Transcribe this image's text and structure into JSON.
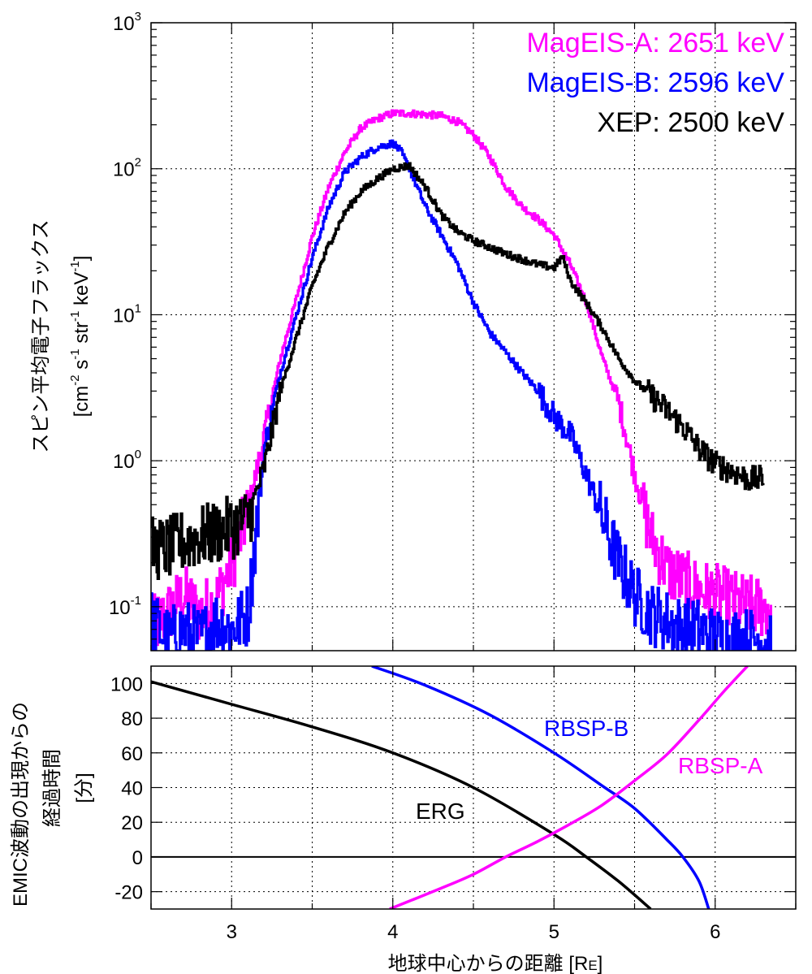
{
  "chart_data": [
    {
      "type": "line",
      "panel": "top",
      "ylabel_line1": "スピン平均電子フラックス",
      "ylabel_line2_parts": [
        "[cm",
        "-2",
        " s",
        "-1",
        " str",
        "-1",
        " keV",
        "-1",
        "]"
      ],
      "yscale": "log",
      "xlim": [
        2.5,
        6.5
      ],
      "ylim": [
        0.05,
        1000
      ],
      "x_ticks": [
        3,
        4,
        5,
        6
      ],
      "y_ticks": [
        {
          "value": 0.1,
          "base": "10",
          "exp": "-1"
        },
        {
          "value": 1,
          "base": "10",
          "exp": "0"
        },
        {
          "value": 10,
          "base": "10",
          "exp": "1"
        },
        {
          "value": 100,
          "base": "10",
          "exp": "2"
        },
        {
          "value": 1000,
          "base": "10",
          "exp": "3"
        }
      ],
      "grid": true,
      "legend_position": "top-right",
      "series": [
        {
          "name": "MagEIS-A: 2651 keV",
          "color": "#ff00ff",
          "x": [
            2.5,
            2.6,
            2.7,
            2.8,
            2.9,
            3.0,
            3.1,
            3.2,
            3.3,
            3.4,
            3.5,
            3.6,
            3.7,
            3.8,
            3.9,
            4.0,
            4.1,
            4.2,
            4.3,
            4.4,
            4.5,
            4.6,
            4.7,
            4.8,
            4.9,
            5.0,
            5.1,
            5.2,
            5.3,
            5.4,
            5.5,
            5.6,
            5.7,
            5.8,
            5.9,
            6.0,
            6.1,
            6.2,
            6.35
          ],
          "y": [
            0.07,
            0.09,
            0.12,
            0.09,
            0.11,
            0.2,
            0.45,
            1.5,
            5,
            13,
            35,
            75,
            130,
            190,
            220,
            240,
            240,
            235,
            230,
            210,
            170,
            120,
            75,
            55,
            45,
            35,
            22,
            12,
            5,
            2.5,
            0.8,
            0.3,
            0.18,
            0.15,
            0.13,
            0.12,
            0.11,
            0.1,
            0.1
          ]
        },
        {
          "name": "MagEIS-B: 2596 keV",
          "color": "#0000ff",
          "x": [
            2.5,
            2.6,
            2.7,
            2.8,
            2.9,
            3.0,
            3.1,
            3.2,
            3.3,
            3.4,
            3.5,
            3.6,
            3.7,
            3.8,
            3.9,
            4.0,
            4.05,
            4.1,
            4.2,
            4.3,
            4.4,
            4.5,
            4.6,
            4.7,
            4.8,
            4.9,
            5.0,
            5.1,
            5.2,
            5.3,
            5.4,
            5.5,
            5.6,
            5.7,
            5.8,
            5.9,
            6.0,
            6.1,
            6.2,
            6.35
          ],
          "y": [
            0.08,
            0.06,
            0.07,
            0.06,
            0.08,
            0.07,
            0.09,
            1.2,
            4,
            10,
            25,
            55,
            95,
            120,
            140,
            150,
            130,
            100,
            55,
            35,
            22,
            12,
            7.5,
            5.5,
            4,
            3,
            2,
            1.5,
            0.8,
            0.4,
            0.2,
            0.12,
            0.09,
            0.08,
            0.07,
            0.07,
            0.06,
            0.06,
            0.06,
            0.06
          ]
        },
        {
          "name": "XEP: 2500 keV",
          "color": "#000000",
          "x": [
            2.5,
            2.6,
            2.7,
            2.8,
            2.9,
            3.0,
            3.1,
            3.2,
            3.3,
            3.4,
            3.5,
            3.6,
            3.7,
            3.8,
            3.9,
            4.0,
            4.1,
            4.2,
            4.3,
            4.4,
            4.5,
            4.6,
            4.7,
            4.8,
            4.9,
            5.0,
            5.05,
            5.1,
            5.2,
            5.3,
            5.4,
            5.5,
            5.6,
            5.7,
            5.8,
            5.9,
            6.0,
            6.1,
            6.2,
            6.3
          ],
          "y": [
            0.25,
            0.25,
            0.28,
            0.3,
            0.32,
            0.35,
            0.4,
            0.9,
            3,
            7,
            16,
            30,
            50,
            70,
            85,
            100,
            105,
            75,
            48,
            37,
            32,
            29,
            26,
            24,
            22,
            21,
            25,
            17,
            12,
            8,
            5,
            3.5,
            2.8,
            2.2,
            1.7,
            1.2,
            0.95,
            0.85,
            0.75,
            0.75
          ]
        }
      ]
    },
    {
      "type": "line",
      "panel": "bottom",
      "ylabel_lines": [
        "EMIC波動の出現からの",
        "経過時間",
        "[分]"
      ],
      "xlabel_main": "地球中心からの距離 [R",
      "xlabel_sub": "E",
      "xlabel_end": "]",
      "xlim": [
        2.5,
        6.5
      ],
      "ylim": [
        -30,
        110
      ],
      "x_ticks": [
        3,
        4,
        5,
        6
      ],
      "x_tick_labels": [
        "3",
        "4",
        "5",
        "6"
      ],
      "y_ticks": [
        -20,
        0,
        20,
        40,
        60,
        80,
        100
      ],
      "y_tick_labels": [
        "-20",
        "0",
        "20",
        "40",
        "60",
        "80",
        "100"
      ],
      "zero_line": true,
      "grid": true,
      "series": [
        {
          "name": "ERG",
          "color": "#000000",
          "x": [
            2.5,
            3.0,
            3.5,
            4.0,
            4.5,
            5.0,
            5.2,
            5.4,
            5.6
          ],
          "y": [
            101,
            88,
            75,
            60,
            40,
            13,
            0,
            -14,
            -30
          ]
        },
        {
          "name": "RBSP-B",
          "color": "#0000ff",
          "x": [
            3.87,
            4.2,
            4.6,
            5.0,
            5.3,
            5.5,
            5.7,
            5.8,
            5.9,
            5.96
          ],
          "y": [
            110,
            99,
            82,
            60,
            41,
            28,
            10,
            0,
            -14,
            -30
          ]
        },
        {
          "name": "RBSP-A",
          "color": "#ff00ff",
          "x": [
            3.98,
            4.3,
            4.5,
            4.7,
            4.9,
            5.1,
            5.3,
            5.5,
            5.7,
            5.9,
            6.05,
            6.2
          ],
          "y": [
            -30,
            -18,
            -10,
            0,
            9,
            19,
            30,
            44,
            59,
            79,
            95,
            110
          ]
        }
      ]
    }
  ]
}
